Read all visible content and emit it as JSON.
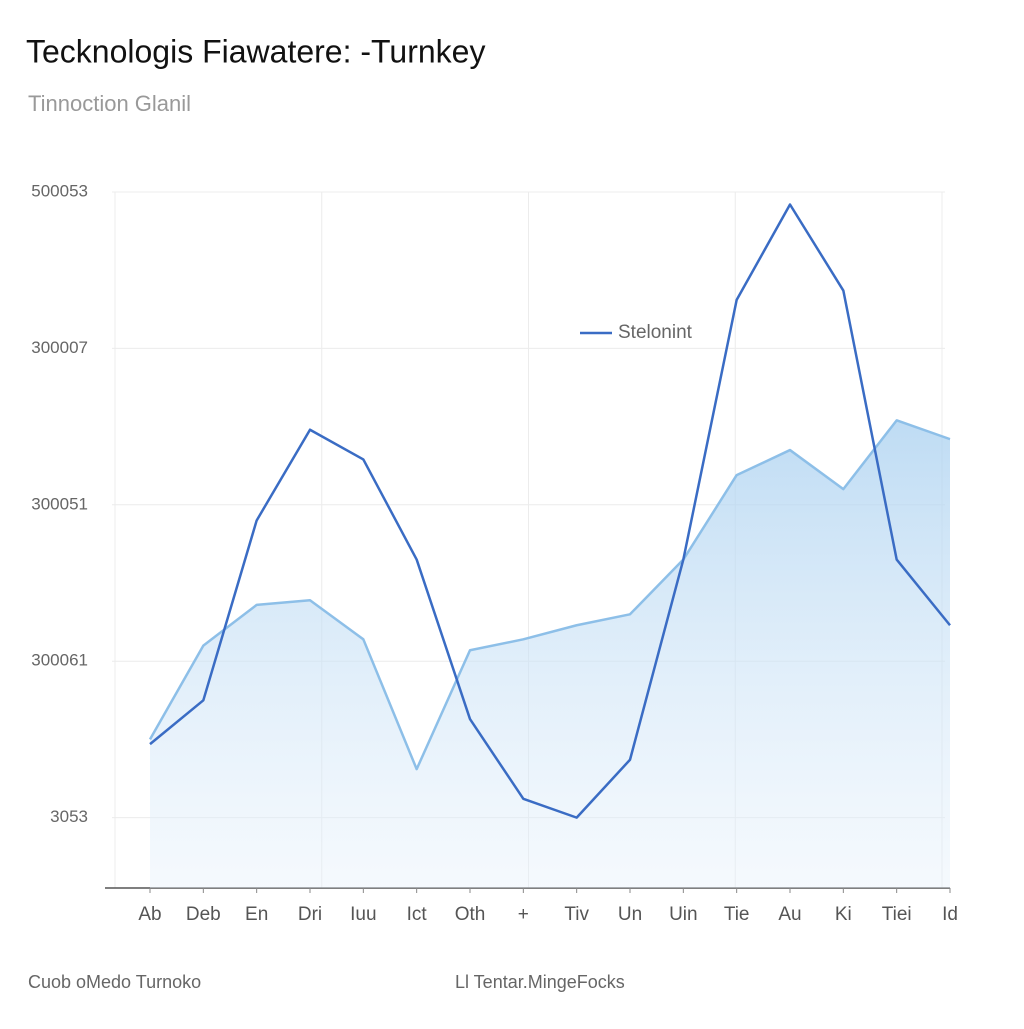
{
  "chart_data": {
    "type": "line",
    "title": "Tecknologis Fiawatere: -Turnkey",
    "subtitle": "Tinnoction Glanil",
    "footer_left": "Cuob oMedo Turnoko",
    "footer_center": "Ll Tentar.MingeFocks",
    "categories": [
      "Ab",
      "Deb",
      "En",
      "Dri",
      "Iuu",
      "Ict",
      "Oth",
      "+",
      "Tiv",
      "Un",
      "Uin",
      "Tie",
      "Au",
      "Ki",
      "Tiei",
      "Id"
    ],
    "series": [
      {
        "name": "Stelonint",
        "color": "#3a6cc4",
        "values": [
          0.47,
          0.75,
          1.9,
          2.48,
          2.29,
          1.65,
          0.63,
          0.12,
          0,
          0.37,
          1.65,
          3.31,
          3.92,
          3.37,
          1.65,
          1.23
        ]
      },
      {
        "color": "#8dbfe8",
        "area": true,
        "values": [
          0.5,
          1.1,
          1.36,
          1.39,
          1.14,
          0.31,
          1.07,
          1.14,
          1.23,
          1.3,
          1.65,
          2.19,
          2.35,
          2.1,
          2.54,
          2.42
        ]
      }
    ],
    "ylim": [
      -0.45,
      4
    ],
    "yticks": [
      {
        "value": 0,
        "label": "3053"
      },
      {
        "value": 1,
        "label": "300061"
      },
      {
        "value": 2,
        "label": "300051"
      },
      {
        "value": 3,
        "label": "300007"
      },
      {
        "value": 4,
        "label": "500053"
      }
    ],
    "grid": true,
    "legend": "top-center"
  }
}
